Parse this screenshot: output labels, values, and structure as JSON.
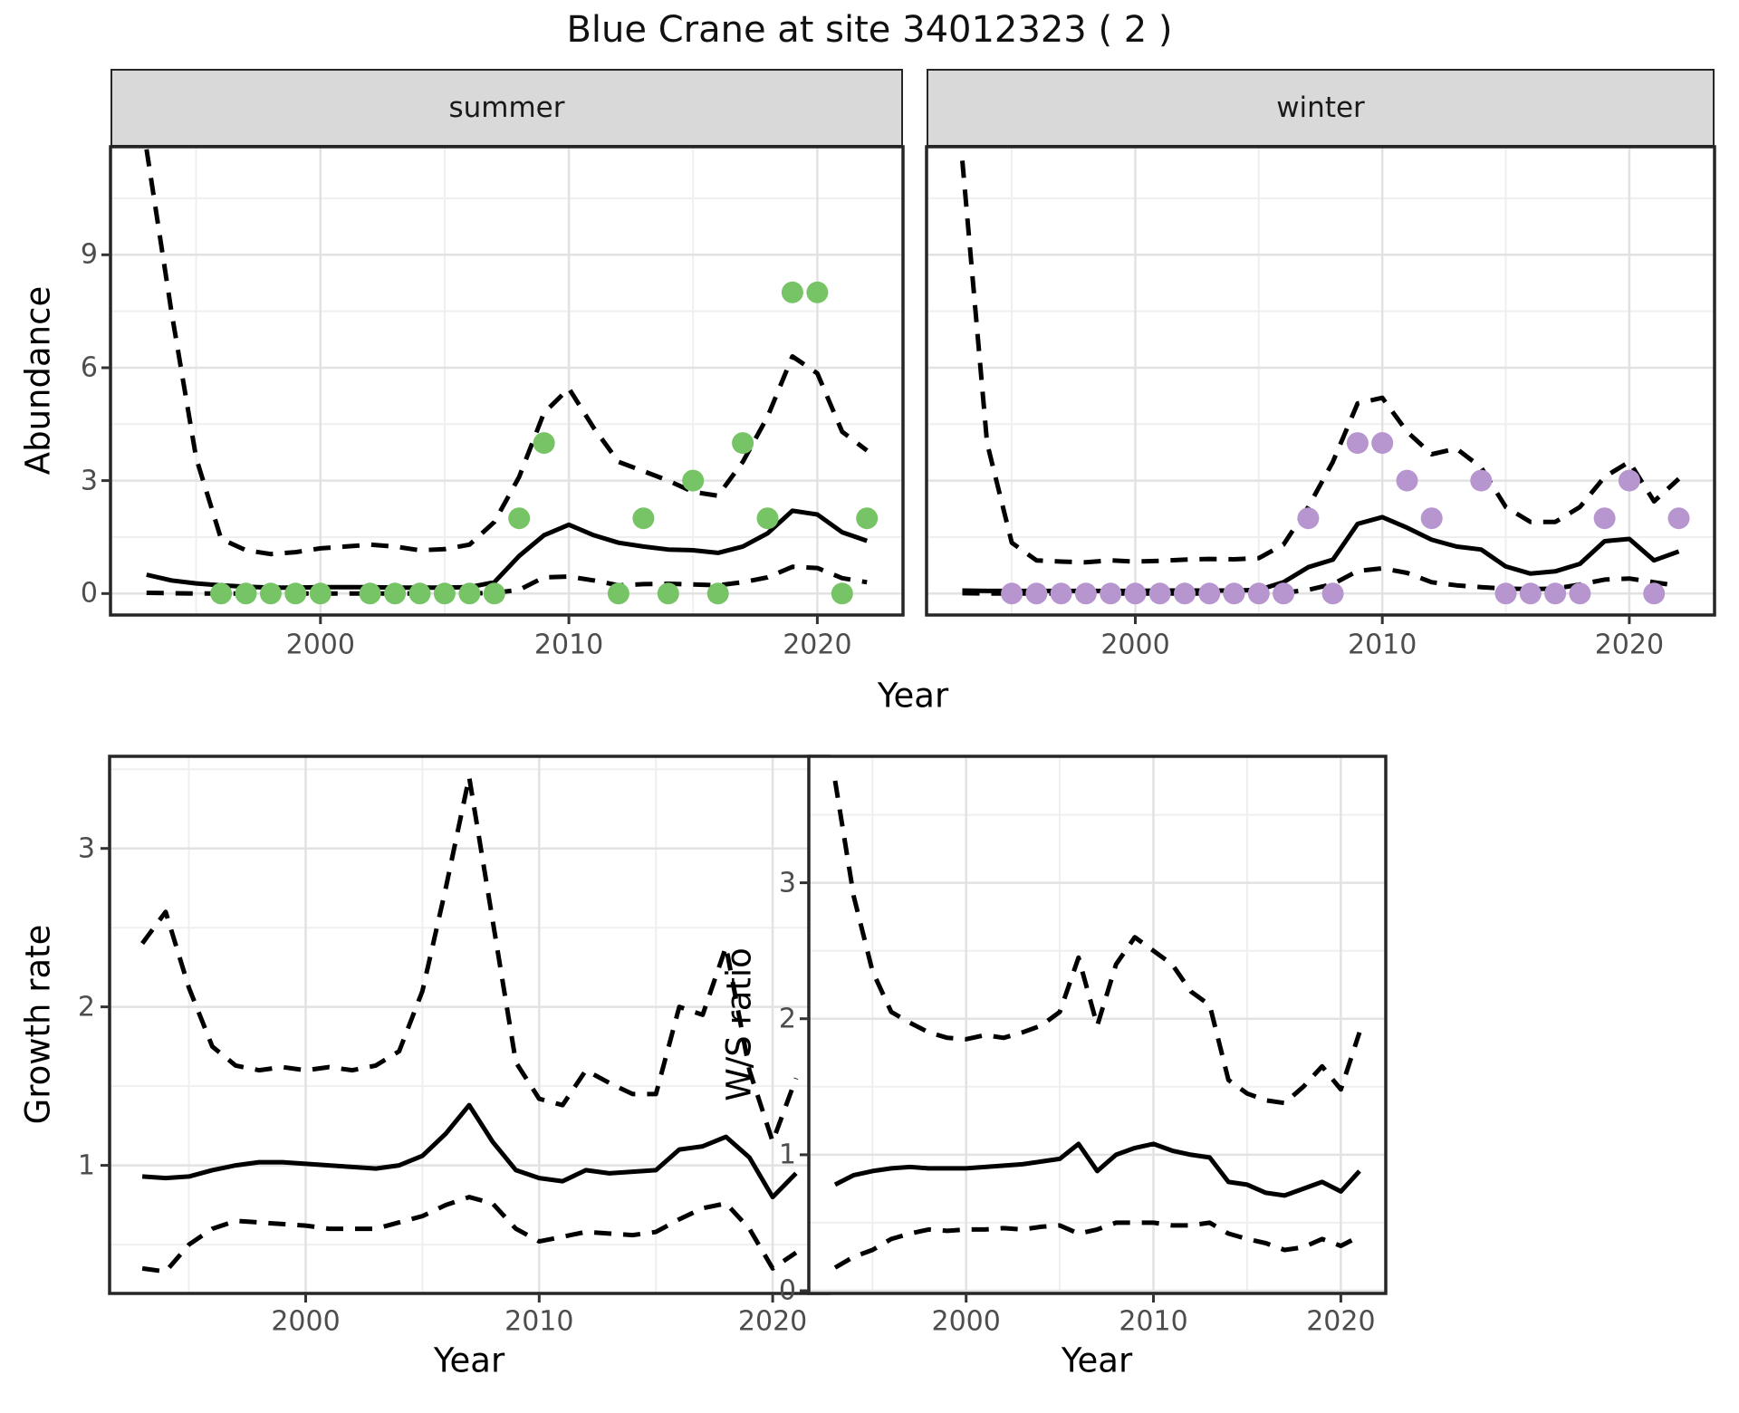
{
  "title": "Blue Crane at site 34012323 ( 2 )",
  "top_row": {
    "ylabel": "Abundance",
    "xlabel": "Year",
    "facets": [
      "summer",
      "winter"
    ]
  },
  "bottom_left": {
    "ylabel": "Growth rate",
    "xlabel": "Year"
  },
  "bottom_right": {
    "ylabel": "W/S ratio",
    "xlabel": "Year"
  },
  "colors": {
    "summer_point": "#76c465",
    "winter_point": "#b796d0",
    "median_line": "#000000",
    "ci_line": "#000000",
    "strip_bg": "#d9d9d9",
    "panel_border": "#262626",
    "grid_major": "#e2e2e2",
    "grid_minor": "#efefef",
    "tick_mark": "#333333",
    "tick_text": "#4d4d4d"
  },
  "chart_data": [
    {
      "id": "abundance_summer",
      "type": "line+scatter",
      "facet": "summer",
      "ylabel": "Abundance",
      "xlabel": "Year",
      "xlim": [
        1991.55,
        2023.45
      ],
      "ylim": [
        -0.57,
        11.87
      ],
      "x_ticks": [
        2000,
        2010,
        2020
      ],
      "x_minor": [
        1995,
        2005,
        2015
      ],
      "y_ticks": [
        0,
        3,
        6,
        9
      ],
      "y_minor": [
        1.5,
        4.5,
        7.5,
        10.5
      ],
      "series": [
        {
          "name": "upper_ci",
          "style": "dashed",
          "x": [
            1993,
            1994,
            1995,
            1996,
            1997,
            1998,
            1999,
            2000,
            2001,
            2002,
            2003,
            2004,
            2005,
            2006,
            2007,
            2008,
            2009,
            2010,
            2011,
            2012,
            2013,
            2014,
            2015,
            2016,
            2017,
            2018,
            2019,
            2020,
            2021,
            2022
          ],
          "y": [
            11.8,
            7.5,
            3.6,
            1.45,
            1.15,
            1.05,
            1.1,
            1.2,
            1.25,
            1.3,
            1.25,
            1.15,
            1.18,
            1.3,
            1.9,
            3.1,
            4.8,
            5.45,
            4.4,
            3.5,
            3.25,
            3.0,
            2.7,
            2.6,
            3.5,
            4.7,
            6.3,
            5.85,
            4.3,
            3.8
          ]
        },
        {
          "name": "median",
          "style": "solid",
          "x": [
            1993,
            1994,
            1995,
            1996,
            1997,
            1998,
            1999,
            2000,
            2001,
            2002,
            2003,
            2004,
            2005,
            2006,
            2007,
            2008,
            2009,
            2010,
            2011,
            2012,
            2013,
            2014,
            2015,
            2016,
            2017,
            2018,
            2019,
            2020,
            2021,
            2022
          ],
          "y": [
            0.5,
            0.35,
            0.27,
            0.22,
            0.18,
            0.16,
            0.16,
            0.17,
            0.17,
            0.17,
            0.16,
            0.16,
            0.16,
            0.17,
            0.3,
            1.0,
            1.55,
            1.83,
            1.55,
            1.35,
            1.25,
            1.17,
            1.15,
            1.08,
            1.25,
            1.6,
            2.2,
            2.1,
            1.63,
            1.4
          ]
        },
        {
          "name": "lower_ci",
          "style": "dashed",
          "x": [
            1993,
            1994,
            1995,
            1996,
            1997,
            1998,
            1999,
            2000,
            2001,
            2002,
            2003,
            2004,
            2005,
            2006,
            2007,
            2008,
            2009,
            2010,
            2011,
            2012,
            2013,
            2014,
            2015,
            2016,
            2017,
            2018,
            2019,
            2020,
            2021,
            2022
          ],
          "y": [
            0.02,
            0.01,
            0,
            0,
            0,
            0,
            0,
            0,
            0,
            0,
            0,
            0,
            0,
            0,
            0.02,
            0.1,
            0.43,
            0.45,
            0.35,
            0.22,
            0.25,
            0.26,
            0.24,
            0.22,
            0.3,
            0.43,
            0.71,
            0.68,
            0.41,
            0.3
          ]
        }
      ],
      "points": {
        "name": "observed_counts_summer",
        "color": "#76c465",
        "x": [
          1996,
          1997,
          1998,
          1999,
          2000,
          2002,
          2003,
          2004,
          2005,
          2006,
          2007,
          2008,
          2009,
          2012,
          2013,
          2014,
          2015,
          2016,
          2017,
          2018,
          2019,
          2020,
          2021,
          2022
        ],
        "y": [
          0,
          0,
          0,
          0,
          0,
          0,
          0,
          0,
          0,
          0,
          0,
          2,
          4,
          0,
          2,
          0,
          3,
          0,
          4,
          2,
          8,
          8,
          0,
          2
        ]
      }
    },
    {
      "id": "abundance_winter",
      "type": "line+scatter",
      "facet": "winter",
      "ylabel": "Abundance",
      "xlabel": "Year",
      "xlim": [
        1991.55,
        2023.45
      ],
      "ylim": [
        -0.57,
        11.87
      ],
      "x_ticks": [
        2000,
        2010,
        2020
      ],
      "x_minor": [
        1995,
        2005,
        2015
      ],
      "y_ticks": [
        0,
        3,
        6,
        9
      ],
      "y_minor": [
        1.5,
        4.5,
        7.5,
        10.5
      ],
      "series": [
        {
          "name": "upper_ci",
          "style": "dashed",
          "x": [
            1993,
            1994,
            1995,
            1996,
            1997,
            1998,
            1999,
            2000,
            2001,
            2002,
            2003,
            2004,
            2005,
            2006,
            2007,
            2008,
            2009,
            2010,
            2011,
            2012,
            2013,
            2014,
            2015,
            2016,
            2017,
            2018,
            2019,
            2020,
            2021,
            2022
          ],
          "y": [
            11.5,
            4.0,
            1.35,
            0.88,
            0.85,
            0.83,
            0.88,
            0.85,
            0.87,
            0.9,
            0.92,
            0.91,
            0.94,
            1.3,
            2.3,
            3.5,
            5.05,
            5.2,
            4.3,
            3.7,
            3.85,
            3.35,
            2.3,
            1.9,
            1.9,
            2.3,
            3.1,
            3.5,
            2.45,
            3.05
          ]
        },
        {
          "name": "median",
          "style": "solid",
          "x": [
            1993,
            1994,
            1995,
            1996,
            1997,
            1998,
            1999,
            2000,
            2001,
            2002,
            2003,
            2004,
            2005,
            2006,
            2007,
            2008,
            2009,
            2010,
            2011,
            2012,
            2013,
            2014,
            2015,
            2016,
            2017,
            2018,
            2019,
            2020,
            2021,
            2022
          ],
          "y": [
            0.08,
            0.07,
            0.07,
            0.07,
            0.07,
            0.07,
            0.07,
            0.07,
            0.08,
            0.08,
            0.08,
            0.08,
            0.1,
            0.3,
            0.7,
            0.9,
            1.85,
            2.03,
            1.75,
            1.43,
            1.25,
            1.17,
            0.72,
            0.53,
            0.59,
            0.79,
            1.39,
            1.45,
            0.88,
            1.12
          ]
        },
        {
          "name": "lower_ci",
          "style": "dashed",
          "x": [
            1993,
            1994,
            1995,
            1996,
            1997,
            1998,
            1999,
            2000,
            2001,
            2002,
            2003,
            2004,
            2005,
            2006,
            2007,
            2008,
            2009,
            2010,
            2011,
            2012,
            2013,
            2014,
            2015,
            2016,
            2017,
            2018,
            2019,
            2020,
            2021,
            2022
          ],
          "y": [
            0.01,
            0,
            0,
            0,
            0,
            0,
            0,
            0,
            0,
            0,
            0,
            0,
            0,
            0.02,
            0.1,
            0.25,
            0.6,
            0.67,
            0.55,
            0.3,
            0.22,
            0.17,
            0.13,
            0.12,
            0.13,
            0.24,
            0.37,
            0.4,
            0.3,
            0.2
          ]
        }
      ],
      "points": {
        "name": "observed_counts_winter",
        "color": "#b796d0",
        "x": [
          1995,
          1996,
          1997,
          1998,
          1999,
          2000,
          2001,
          2002,
          2003,
          2004,
          2005,
          2006,
          2007,
          2008,
          2009,
          2010,
          2011,
          2012,
          2014,
          2015,
          2016,
          2017,
          2018,
          2019,
          2020,
          2021,
          2022
        ],
        "y": [
          0,
          0,
          0,
          0,
          0,
          0,
          0,
          0,
          0,
          0,
          0,
          0,
          2,
          0,
          4,
          4,
          3,
          2,
          3,
          0,
          0,
          0,
          0,
          2,
          3,
          0,
          2
        ]
      }
    },
    {
      "id": "growth_rate",
      "type": "line",
      "ylabel": "Growth rate",
      "xlabel": "Year",
      "xlim": [
        1991.6,
        2022.4
      ],
      "ylim": [
        0.192,
        3.581
      ],
      "x_ticks": [
        2000,
        2010,
        2020
      ],
      "x_minor": [
        1995,
        2005,
        2015
      ],
      "y_ticks": [
        1,
        2,
        3
      ],
      "y_minor": [
        0.5,
        1.5,
        2.5,
        3.5
      ],
      "series": [
        {
          "name": "upper_ci",
          "style": "dashed",
          "x": [
            1993,
            1994,
            1995,
            1996,
            1997,
            1998,
            1999,
            2000,
            2001,
            2002,
            2003,
            2004,
            2005,
            2006,
            2007,
            2008,
            2009,
            2010,
            2011,
            2012,
            2013,
            2014,
            2015,
            2016,
            2017,
            2018,
            2019,
            2020,
            2021
          ],
          "y": [
            2.4,
            2.6,
            2.12,
            1.75,
            1.63,
            1.6,
            1.62,
            1.6,
            1.62,
            1.6,
            1.63,
            1.72,
            2.1,
            2.75,
            3.45,
            2.55,
            1.65,
            1.42,
            1.38,
            1.6,
            1.52,
            1.45,
            1.45,
            2.0,
            1.95,
            2.38,
            1.6,
            1.15,
            1.55
          ]
        },
        {
          "name": "median",
          "style": "solid",
          "x": [
            1993,
            1994,
            1995,
            1996,
            1997,
            1998,
            1999,
            2000,
            2001,
            2002,
            2003,
            2004,
            2005,
            2006,
            2007,
            2008,
            2009,
            2010,
            2011,
            2012,
            2013,
            2014,
            2015,
            2016,
            2017,
            2018,
            2019,
            2020,
            2021
          ],
          "y": [
            0.93,
            0.92,
            0.93,
            0.97,
            1.0,
            1.02,
            1.02,
            1.01,
            1.0,
            0.99,
            0.98,
            1.0,
            1.06,
            1.2,
            1.38,
            1.15,
            0.97,
            0.92,
            0.9,
            0.97,
            0.95,
            0.96,
            0.97,
            1.1,
            1.12,
            1.18,
            1.05,
            0.8,
            0.95
          ]
        },
        {
          "name": "lower_ci",
          "style": "dashed",
          "x": [
            1993,
            1994,
            1995,
            1996,
            1997,
            1998,
            1999,
            2000,
            2001,
            2002,
            2003,
            2004,
            2005,
            2006,
            2007,
            2008,
            2009,
            2010,
            2011,
            2012,
            2013,
            2014,
            2015,
            2016,
            2017,
            2018,
            2019,
            2020,
            2021
          ],
          "y": [
            0.35,
            0.33,
            0.5,
            0.6,
            0.65,
            0.64,
            0.63,
            0.62,
            0.6,
            0.6,
            0.6,
            0.64,
            0.68,
            0.75,
            0.8,
            0.76,
            0.6,
            0.52,
            0.55,
            0.58,
            0.57,
            0.56,
            0.58,
            0.66,
            0.73,
            0.76,
            0.6,
            0.35,
            0.45
          ]
        }
      ]
    },
    {
      "id": "ws_ratio",
      "type": "line",
      "ylabel": "W/S ratio",
      "xlabel": "Year",
      "xlim": [
        1991.6,
        2022.4
      ],
      "ylim": [
        -0.02,
        3.93
      ],
      "x_ticks": [
        2000,
        2010,
        2020
      ],
      "x_minor": [
        1995,
        2005,
        2015
      ],
      "y_ticks": [
        0,
        1,
        2,
        3
      ],
      "y_minor": [
        0.5,
        1.5,
        2.5,
        3.5
      ],
      "series": [
        {
          "name": "upper_ci",
          "style": "dashed",
          "x": [
            1993,
            1994,
            1995,
            1996,
            1997,
            1998,
            1999,
            2000,
            2001,
            2002,
            2003,
            2004,
            2005,
            2006,
            2007,
            2008,
            2009,
            2010,
            2011,
            2012,
            2013,
            2014,
            2015,
            2016,
            2017,
            2018,
            2019,
            2020,
            2021
          ],
          "y": [
            3.75,
            2.9,
            2.35,
            2.05,
            1.97,
            1.9,
            1.86,
            1.85,
            1.88,
            1.86,
            1.9,
            1.95,
            2.05,
            2.45,
            1.95,
            2.4,
            2.6,
            2.5,
            2.4,
            2.2,
            2.1,
            1.55,
            1.45,
            1.4,
            1.38,
            1.5,
            1.65,
            1.48,
            1.9
          ]
        },
        {
          "name": "median",
          "style": "solid",
          "x": [
            1993,
            1994,
            1995,
            1996,
            1997,
            1998,
            1999,
            2000,
            2001,
            2002,
            2003,
            2004,
            2005,
            2006,
            2007,
            2008,
            2009,
            2010,
            2011,
            2012,
            2013,
            2014,
            2015,
            2016,
            2017,
            2018,
            2019,
            2020,
            2021
          ],
          "y": [
            0.78,
            0.85,
            0.88,
            0.9,
            0.91,
            0.9,
            0.9,
            0.9,
            0.91,
            0.92,
            0.93,
            0.95,
            0.97,
            1.08,
            0.88,
            1.0,
            1.05,
            1.08,
            1.03,
            1.0,
            0.98,
            0.8,
            0.78,
            0.72,
            0.7,
            0.75,
            0.8,
            0.73,
            0.88
          ]
        },
        {
          "name": "lower_ci",
          "style": "dashed",
          "x": [
            1993,
            1994,
            1995,
            1996,
            1997,
            1998,
            1999,
            2000,
            2001,
            2002,
            2003,
            2004,
            2005,
            2006,
            2007,
            2008,
            2009,
            2010,
            2011,
            2012,
            2013,
            2014,
            2015,
            2016,
            2017,
            2018,
            2019,
            2020,
            2021
          ],
          "y": [
            0.17,
            0.25,
            0.3,
            0.38,
            0.42,
            0.45,
            0.44,
            0.45,
            0.45,
            0.46,
            0.45,
            0.47,
            0.48,
            0.42,
            0.45,
            0.5,
            0.5,
            0.5,
            0.48,
            0.48,
            0.5,
            0.42,
            0.38,
            0.35,
            0.3,
            0.32,
            0.38,
            0.33,
            0.4
          ]
        }
      ]
    }
  ]
}
